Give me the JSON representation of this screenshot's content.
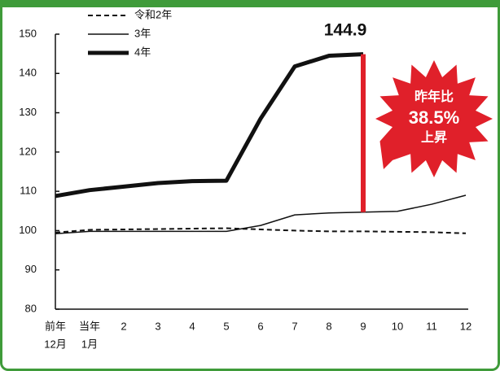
{
  "chart_data": {
    "type": "line",
    "categories": [
      "前年",
      "当年",
      "2",
      "3",
      "4",
      "5",
      "6",
      "7",
      "8",
      "9",
      "10",
      "11",
      "12"
    ],
    "category_sublabels": [
      "12月",
      "1月",
      null,
      null,
      null,
      null,
      null,
      null,
      null,
      null,
      null,
      null,
      null
    ],
    "series": [
      {
        "name": "令和2年",
        "color": "#111111",
        "style": "dashed",
        "width": 2,
        "values": [
          99.5,
          100.2,
          100.3,
          100.4,
          100.5,
          100.6,
          100.3,
          100.0,
          99.8,
          99.8,
          99.7,
          99.6,
          99.3
        ]
      },
      {
        "name": "3年",
        "color": "#111111",
        "style": "solid",
        "width": 1.5,
        "values": [
          99.2,
          99.8,
          99.8,
          99.8,
          99.8,
          99.8,
          101.3,
          104.0,
          104.5,
          104.7,
          104.9,
          106.7,
          109.0
        ]
      },
      {
        "name": "4年",
        "color": "#111111",
        "style": "solid",
        "width": 5,
        "values": [
          108.8,
          110.3,
          111.2,
          112.1,
          112.6,
          112.7,
          128.5,
          141.8,
          144.5,
          144.9,
          null,
          null,
          null
        ]
      }
    ],
    "ylim": [
      80,
      150
    ],
    "yticks": [
      80,
      90,
      100,
      110,
      120,
      130,
      140,
      150
    ],
    "grid": false,
    "legend": "top-left",
    "highlight_color": "#e0202a",
    "annotation": [
      "昨年比",
      "38.5%",
      "上昇"
    ]
  }
}
